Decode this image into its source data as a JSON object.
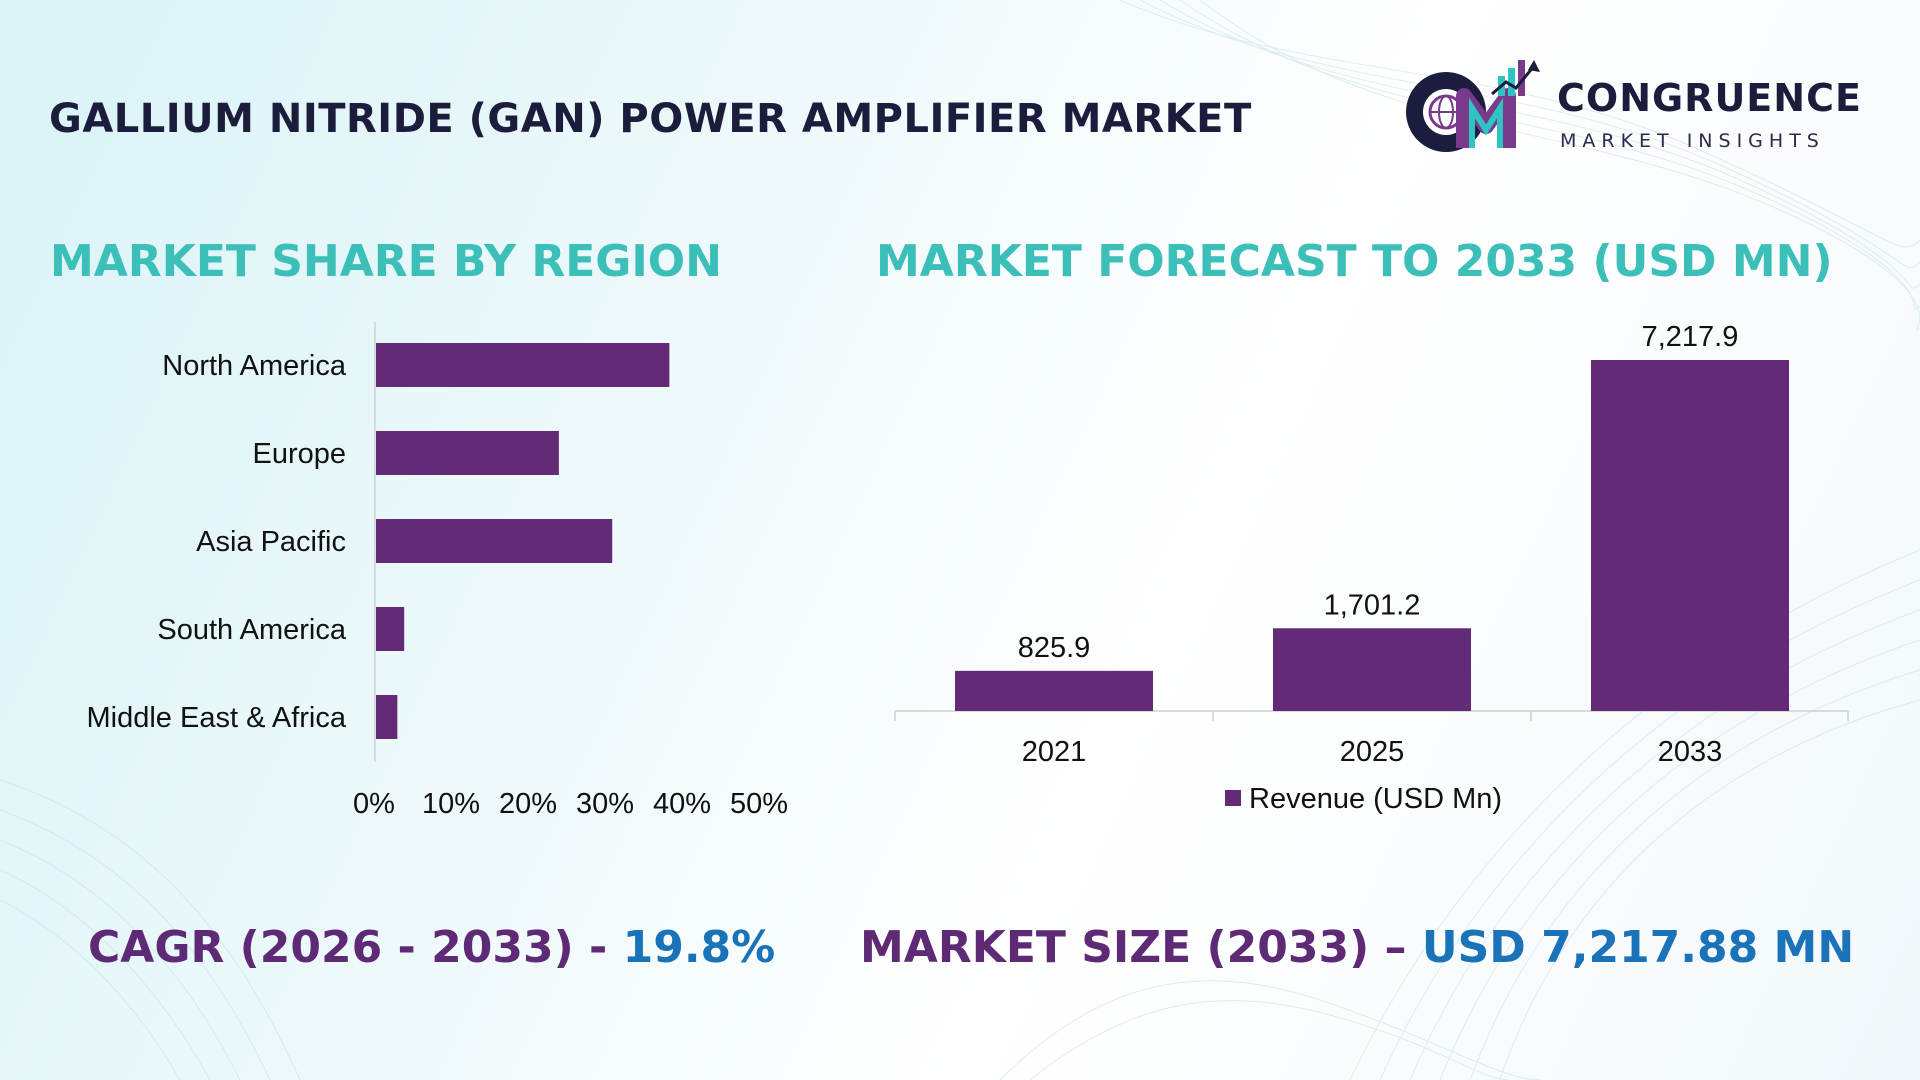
{
  "header": {
    "title": "GALLIUM NITRIDE (GAN) POWER AMPLIFIER MARKET",
    "logo_name": "CONGRUENCE",
    "logo_sub": "MARKET INSIGHTS"
  },
  "colors": {
    "bar": "#632a77",
    "accent_teal": "#3cbfb9",
    "stat_label": "#5e2a75",
    "stat_value": "#1a73b8",
    "title": "#1c1c3c"
  },
  "left_section": {
    "title": "MARKET SHARE BY REGION"
  },
  "right_section": {
    "title": "MARKET FORECAST TO 2033 (USD MN)"
  },
  "chart_data": [
    {
      "type": "bar",
      "orientation": "horizontal",
      "title": "MARKET SHARE BY REGION",
      "categories": [
        "North America",
        "Europe",
        "Asia Pacific",
        "South America",
        "Middle East & Africa"
      ],
      "values": [
        38.5,
        24,
        31,
        3.7,
        2.8
      ],
      "xlim": [
        0,
        50
      ],
      "xticks": [
        "0%",
        "10%",
        "20%",
        "30%",
        "40%",
        "50%"
      ],
      "grid": false
    },
    {
      "type": "bar",
      "orientation": "vertical",
      "title": "MARKET FORECAST TO 2033 (USD MN)",
      "categories": [
        "2021",
        "2025",
        "2033"
      ],
      "values": [
        825.9,
        1701.2,
        7217.9
      ],
      "value_labels": [
        "825.9",
        "1,701.2",
        "7,217.9"
      ],
      "series": [
        {
          "name": "Revenue (USD Mn)",
          "values": [
            825.9,
            1701.2,
            7217.9
          ]
        }
      ],
      "ylim": [
        0,
        7217.9
      ],
      "legend": "bottom-center",
      "grid": false
    }
  ],
  "stats": {
    "cagr_label": "CAGR (2026 - 2033) - ",
    "cagr_value": "19.8%",
    "size_label": "MARKET SIZE (2033) – ",
    "size_value": "USD 7,217.88 MN"
  }
}
